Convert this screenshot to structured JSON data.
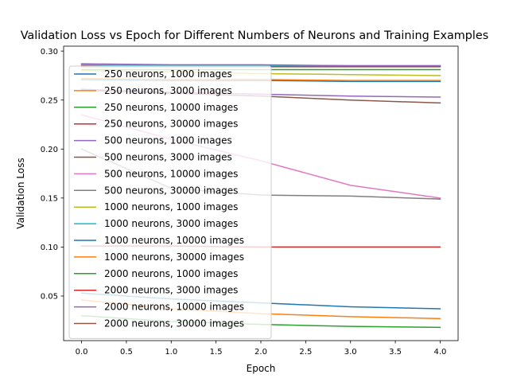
{
  "chart_data": {
    "type": "line",
    "title": "Validation Loss vs Epoch for Different Numbers of Neurons and Training Examples",
    "xlabel": "Epoch",
    "ylabel": "Validation Loss",
    "xlim": [
      -0.2,
      4.2
    ],
    "ylim": [
      0.0045,
      0.305
    ],
    "x_ticks": [
      0.0,
      0.5,
      1.0,
      1.5,
      2.0,
      2.5,
      3.0,
      3.5,
      4.0
    ],
    "x_tick_labels": [
      "0.0",
      "0.5",
      "1.0",
      "1.5",
      "2.0",
      "2.5",
      "3.0",
      "3.5",
      "4.0"
    ],
    "y_ticks": [
      0.05,
      0.1,
      0.15,
      0.2,
      0.25,
      0.3
    ],
    "y_tick_labels": [
      "0.05",
      "0.10",
      "0.15",
      "0.20",
      "0.25",
      "0.30"
    ],
    "grid": false,
    "legend_position": "upper-left",
    "x": [
      0,
      1,
      2,
      3,
      4
    ],
    "series": [
      {
        "name": "250 neurons, 1000 images",
        "color": "#1f77b4",
        "values": [
          0.271,
          0.27,
          0.27,
          0.269,
          0.269
        ]
      },
      {
        "name": "250 neurons, 3000 images",
        "color": "#ff7f0e",
        "values": [
          0.272,
          0.271,
          0.271,
          0.27,
          0.27
        ]
      },
      {
        "name": "250 neurons, 10000 images",
        "color": "#2ca02c",
        "values": [
          0.281,
          0.281,
          0.281,
          0.281,
          0.281
        ]
      },
      {
        "name": "250 neurons, 30000 images",
        "color": "#d62728",
        "values": [
          0.2855,
          0.285,
          0.285,
          0.285,
          0.285
        ]
      },
      {
        "name": "500 neurons, 1000 images",
        "color": "#9467bd",
        "values": [
          0.261,
          0.258,
          0.256,
          0.254,
          0.253
        ]
      },
      {
        "name": "500 neurons, 3000 images",
        "color": "#8c564b",
        "values": [
          0.26,
          0.257,
          0.254,
          0.25,
          0.247
        ]
      },
      {
        "name": "500 neurons, 10000 images",
        "color": "#e377c2",
        "values": [
          0.235,
          0.21,
          0.188,
          0.163,
          0.15
        ]
      },
      {
        "name": "500 neurons, 30000 images",
        "color": "#7f7f7f",
        "values": [
          0.2,
          0.16,
          0.153,
          0.152,
          0.149
        ]
      },
      {
        "name": "1000 neurons, 1000 images",
        "color": "#bcbd22",
        "values": [
          0.28,
          0.279,
          0.277,
          0.276,
          0.275
        ]
      },
      {
        "name": "1000 neurons, 3000 images",
        "color": "#17becf",
        "values": [
          0.286,
          0.285,
          0.285,
          0.285,
          0.285
        ]
      },
      {
        "name": "1000 neurons, 10000 images",
        "color": "#1f77b4",
        "values": [
          0.053,
          0.047,
          0.043,
          0.039,
          0.037
        ]
      },
      {
        "name": "1000 neurons, 30000 images",
        "color": "#ff7f0e",
        "values": [
          0.046,
          0.037,
          0.032,
          0.029,
          0.027
        ]
      },
      {
        "name": "2000 neurons, 1000 images",
        "color": "#2ca02c",
        "values": [
          0.03,
          0.024,
          0.021,
          0.019,
          0.018
        ]
      },
      {
        "name": "2000 neurons, 3000 images",
        "color": "#d62728",
        "values": [
          0.101,
          0.101,
          0.1,
          0.1,
          0.1
        ]
      },
      {
        "name": "2000 neurons, 10000 images",
        "color": "#9467bd",
        "values": [
          0.287,
          0.286,
          0.286,
          0.285,
          0.285
        ]
      },
      {
        "name": "2000 neurons, 30000 images",
        "color": "#8c564b",
        "values": [
          0.284,
          0.284,
          0.284,
          0.284,
          0.284
        ]
      }
    ]
  }
}
